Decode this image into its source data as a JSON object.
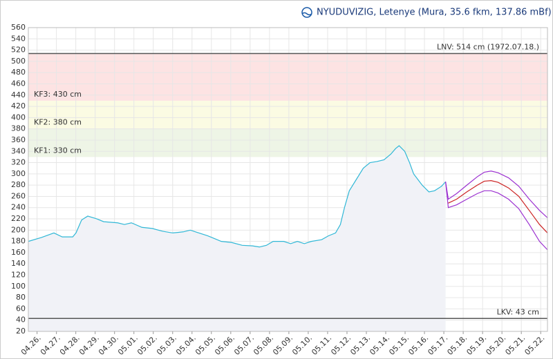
{
  "chart_data": {
    "type": "line",
    "title": "NYUDUVIZIG, Letenye (Mura, 35.6 fkm, 137.86 mBf)",
    "xlim": [
      -0.45,
      26.35
    ],
    "xticks": [
      {
        "value": 0,
        "label": "04.26."
      },
      {
        "value": 1,
        "label": "04.27."
      },
      {
        "value": 2,
        "label": "04.28."
      },
      {
        "value": 3,
        "label": "04.29."
      },
      {
        "value": 4,
        "label": "04.30."
      },
      {
        "value": 5,
        "label": "05.01."
      },
      {
        "value": 6,
        "label": "05.02."
      },
      {
        "value": 7,
        "label": "05.03."
      },
      {
        "value": 8,
        "label": "05.04."
      },
      {
        "value": 9,
        "label": "05.05."
      },
      {
        "value": 10,
        "label": "05.06."
      },
      {
        "value": 11,
        "label": "05.07."
      },
      {
        "value": 12,
        "label": "05.08."
      },
      {
        "value": 13,
        "label": "05.09."
      },
      {
        "value": 14,
        "label": "05.10."
      },
      {
        "value": 15,
        "label": "05.11."
      },
      {
        "value": 16,
        "label": "05.12."
      },
      {
        "value": 17,
        "label": "05.13."
      },
      {
        "value": 18,
        "label": "05.14."
      },
      {
        "value": 19,
        "label": "05.15."
      },
      {
        "value": 20,
        "label": "05.16."
      },
      {
        "value": 21,
        "label": "05.17."
      },
      {
        "value": 22,
        "label": "05.18."
      },
      {
        "value": 23,
        "label": "05.19."
      },
      {
        "value": 24,
        "label": "05.20."
      },
      {
        "value": 25,
        "label": "05.21."
      },
      {
        "value": 26,
        "label": "05.22."
      }
    ],
    "ylim": [
      20,
      560
    ],
    "yticks": [
      20,
      40,
      60,
      80,
      100,
      120,
      140,
      160,
      180,
      200,
      220,
      240,
      260,
      280,
      300,
      320,
      340,
      360,
      380,
      400,
      420,
      440,
      460,
      480,
      500,
      520,
      540,
      560
    ],
    "grid": true,
    "levels": [
      {
        "value": 43,
        "label": "LKV: 43 cm",
        "line_color": "#555555",
        "label_side": "right"
      },
      {
        "value": 330,
        "label": "KF1: 330 cm",
        "band_color": "#eef5e6",
        "label_side": "left"
      },
      {
        "value": 380,
        "label": "KF2: 380 cm",
        "band_color": "#fbfbe3",
        "label_side": "left"
      },
      {
        "value": 430,
        "label": "KF3: 430 cm",
        "band_color": "#fde3e3",
        "label_side": "left"
      },
      {
        "value": 514,
        "label": "LNV: 514 cm (1972.07.18.)",
        "line_color": "#555555",
        "label_side": "right"
      }
    ],
    "series": [
      {
        "color": "#2fb7d6",
        "fill": "#f1f2f7",
        "x": [
          -0.45,
          0.23,
          0.87,
          1.3,
          1.84,
          2.01,
          2.3,
          2.62,
          3.09,
          3.44,
          4.16,
          4.51,
          4.87,
          5.41,
          5.94,
          6.48,
          7.01,
          7.55,
          7.91,
          8.26,
          8.8,
          9.16,
          9.51,
          10.05,
          10.59,
          11.12,
          11.48,
          11.84,
          12.19,
          12.73,
          13.09,
          13.44,
          13.8,
          14.16,
          14.69,
          15.05,
          15.41,
          15.66,
          15.87,
          16.12,
          16.48,
          16.84,
          17.19,
          17.55,
          17.91,
          18.26,
          18.51,
          18.69,
          18.98,
          19.23,
          19.44,
          19.88,
          20.23,
          20.52,
          20.88,
          21.09
        ],
        "values": [
          180,
          187,
          195,
          188,
          188,
          195,
          218,
          225,
          220,
          215,
          213,
          210,
          213,
          205,
          203,
          198,
          195,
          197,
          200,
          196,
          190,
          185,
          180,
          178,
          173,
          172,
          170,
          173,
          180,
          180,
          176,
          180,
          176,
          180,
          183,
          190,
          195,
          210,
          240,
          270,
          290,
          310,
          320,
          322,
          325,
          335,
          345,
          350,
          340,
          320,
          300,
          280,
          268,
          270,
          278,
          286
        ]
      },
      {
        "color": "#9b30d0",
        "x": [
          21.09,
          21.23,
          21.66,
          22.19,
          22.73,
          23.09,
          23.44,
          23.8,
          24.34,
          24.87,
          25.41,
          25.94,
          26.35
        ],
        "values": [
          286,
          255,
          265,
          280,
          295,
          303,
          305,
          302,
          293,
          278,
          255,
          235,
          222
        ]
      },
      {
        "color": "#cc2222",
        "x": [
          21.23,
          21.66,
          22.19,
          22.73,
          23.09,
          23.44,
          23.8,
          24.34,
          24.87,
          25.41,
          25.94,
          26.35
        ],
        "values": [
          248,
          255,
          268,
          280,
          287,
          288,
          285,
          275,
          260,
          235,
          210,
          195
        ]
      },
      {
        "color": "#9b30d0",
        "x": [
          21.09,
          21.23,
          21.66,
          22.19,
          22.73,
          23.09,
          23.44,
          23.8,
          24.34,
          24.87,
          25.41,
          25.94,
          26.35
        ],
        "values": [
          286,
          240,
          245,
          255,
          265,
          270,
          270,
          266,
          255,
          238,
          210,
          180,
          165
        ]
      }
    ]
  }
}
